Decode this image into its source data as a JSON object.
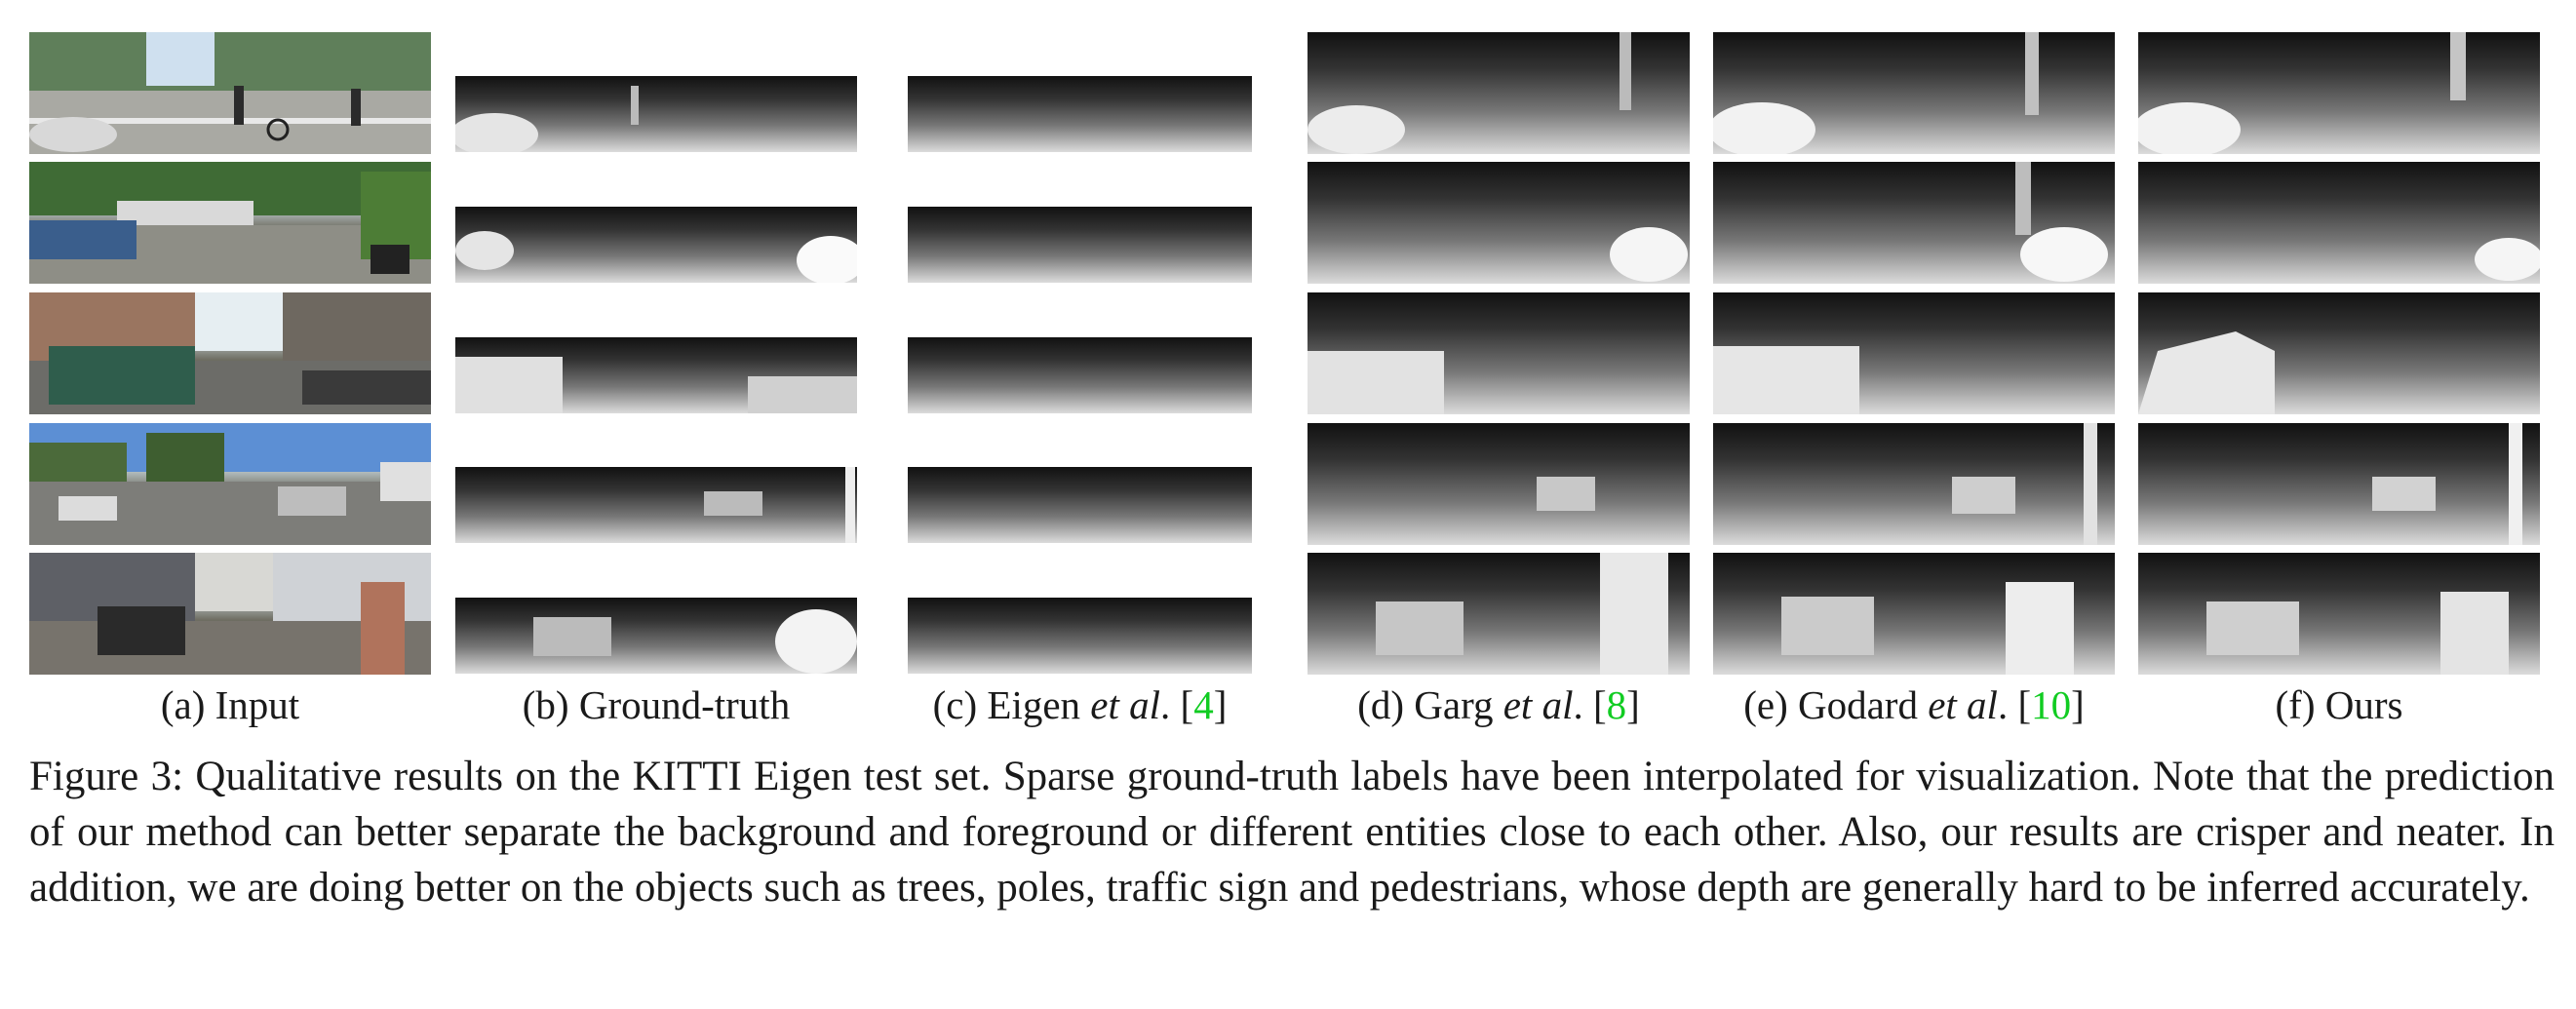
{
  "figure": {
    "columns": [
      {
        "id": "a",
        "prefix": "(a) Input",
        "em": "",
        "suffix": "",
        "ref": "",
        "close": ""
      },
      {
        "id": "b",
        "prefix": "(b) Ground-truth",
        "em": "",
        "suffix": "",
        "ref": "",
        "close": ""
      },
      {
        "id": "c",
        "prefix": "(c) Eigen ",
        "em": "et al",
        "suffix": ". [",
        "ref": "4",
        "close": "]"
      },
      {
        "id": "d",
        "prefix": "(d) Garg ",
        "em": "et al",
        "suffix": ". [",
        "ref": "8",
        "close": "]"
      },
      {
        "id": "e",
        "prefix": "(e) Godard ",
        "em": "et al",
        "suffix": ". [",
        "ref": "10",
        "close": "]"
      },
      {
        "id": "f",
        "prefix": "(f) Ours",
        "em": "",
        "suffix": "",
        "ref": "",
        "close": ""
      }
    ],
    "caption": "Figure 3: Qualitative results on the KITTI Eigen test set. Sparse ground-truth labels have been interpolated for visualization. Note that the prediction of our method can better separate the background and foreground or different entities close to each other. Also, our results are crisper and neater. In addition, we are doing better on the objects such as trees, poles, traffic sign and pedestrians, whose depth are generally hard to be inferred accurately.",
    "ref_color": "#11cc22"
  }
}
